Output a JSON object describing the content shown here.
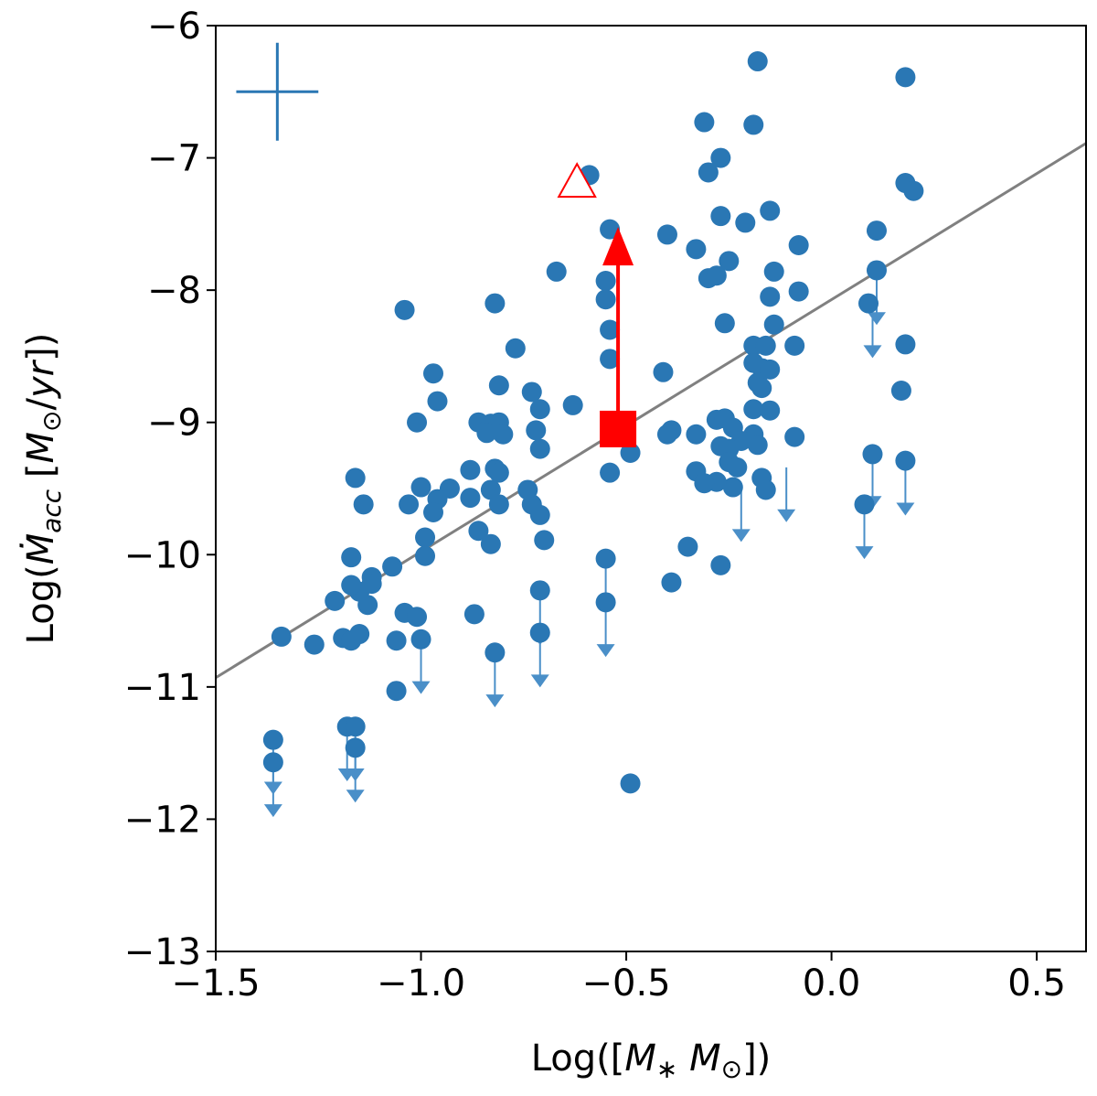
{
  "chart_data": {
    "type": "scatter",
    "title": "",
    "xlabel": "Log([M* M⊙])",
    "ylabel": "Log(Ṁacc [M⊙/yr])",
    "xlim": [
      -1.5,
      0.62
    ],
    "ylim": [
      -13,
      -6
    ],
    "xticks": [
      -1.5,
      -1.0,
      -0.5,
      0.0,
      0.5
    ],
    "xtick_labels": [
      "−1.5",
      "−1.0",
      "−0.5",
      "0.0",
      "0.5"
    ],
    "yticks": [
      -13,
      -12,
      -11,
      -10,
      -9,
      -8,
      -7,
      -6
    ],
    "ytick_labels": [
      "−13",
      "−12",
      "−11",
      "−10",
      "−9",
      "−8",
      "−7",
      "−6"
    ],
    "grid": false,
    "colors": {
      "points": "#2a77b4",
      "upper_limits": "#4a8fc8",
      "fit": "#808080",
      "highlight": "#ff0000"
    },
    "typical_error": {
      "x": -1.35,
      "y": -6.5,
      "xerr": 0.1,
      "yerr": 0.37
    },
    "fit_line": {
      "x": [
        -1.5,
        0.62
      ],
      "y": [
        -10.93,
        -6.89
      ]
    },
    "series": [
      {
        "name": "detections",
        "marker": "circle",
        "points": [
          [
            -0.18,
            -6.27
          ],
          [
            0.18,
            -6.39
          ],
          [
            -0.31,
            -6.73
          ],
          [
            -0.19,
            -6.75
          ],
          [
            -0.3,
            -7.11
          ],
          [
            -0.27,
            -7.0
          ],
          [
            -0.59,
            -7.13
          ],
          [
            0.18,
            -7.19
          ],
          [
            0.2,
            -7.25
          ],
          [
            -0.27,
            -7.44
          ],
          [
            -0.21,
            -7.49
          ],
          [
            -0.15,
            -7.4
          ],
          [
            -0.54,
            -7.54
          ],
          [
            0.11,
            -7.55
          ],
          [
            -0.4,
            -7.58
          ],
          [
            -0.33,
            -7.69
          ],
          [
            -0.08,
            -7.66
          ],
          [
            -0.25,
            -7.78
          ],
          [
            -0.3,
            -7.91
          ],
          [
            -0.28,
            -7.89
          ],
          [
            -0.67,
            -7.86
          ],
          [
            -0.55,
            -7.93
          ],
          [
            -0.14,
            -7.86
          ],
          [
            0.11,
            -7.85
          ],
          [
            -0.15,
            -8.05
          ],
          [
            -0.08,
            -8.01
          ],
          [
            -0.55,
            -8.07
          ],
          [
            -0.82,
            -8.1
          ],
          [
            -1.04,
            -8.15
          ],
          [
            0.09,
            -8.1
          ],
          [
            -0.54,
            -8.3
          ],
          [
            -0.26,
            -8.25
          ],
          [
            -0.14,
            -8.26
          ],
          [
            -0.19,
            -8.42
          ],
          [
            -0.16,
            -8.42
          ],
          [
            -0.09,
            -8.42
          ],
          [
            0.18,
            -8.41
          ],
          [
            -0.77,
            -8.44
          ],
          [
            -0.54,
            -8.52
          ],
          [
            -0.19,
            -8.55
          ],
          [
            -0.17,
            -8.59
          ],
          [
            -0.15,
            -8.6
          ],
          [
            -0.97,
            -8.63
          ],
          [
            -0.41,
            -8.62
          ],
          [
            -0.81,
            -8.72
          ],
          [
            -0.18,
            -8.7
          ],
          [
            -0.17,
            -8.74
          ],
          [
            0.17,
            -8.76
          ],
          [
            -0.73,
            -8.77
          ],
          [
            -0.96,
            -8.84
          ],
          [
            -0.63,
            -8.87
          ],
          [
            -0.19,
            -8.9
          ],
          [
            -0.15,
            -8.91
          ],
          [
            -0.71,
            -8.9
          ],
          [
            -1.01,
            -9.0
          ],
          [
            -0.86,
            -9.0
          ],
          [
            -0.83,
            -9.01
          ],
          [
            -0.81,
            -9.0
          ],
          [
            -0.84,
            -9.08
          ],
          [
            -0.8,
            -9.09
          ],
          [
            -0.72,
            -9.06
          ],
          [
            -0.39,
            -9.06
          ],
          [
            -0.4,
            -9.09
          ],
          [
            -0.33,
            -9.09
          ],
          [
            -0.28,
            -8.98
          ],
          [
            -0.26,
            -8.97
          ],
          [
            -0.24,
            -9.04
          ],
          [
            -0.19,
            -9.09
          ],
          [
            -0.22,
            -9.14
          ],
          [
            -0.18,
            -9.17
          ],
          [
            -0.27,
            -9.18
          ],
          [
            -0.25,
            -9.2
          ],
          [
            -0.49,
            -9.23
          ],
          [
            -0.71,
            -9.2
          ],
          [
            -0.82,
            -9.35
          ],
          [
            -0.81,
            -9.38
          ],
          [
            -0.88,
            -9.36
          ],
          [
            -0.54,
            -9.38
          ],
          [
            -0.33,
            -9.37
          ],
          [
            -0.25,
            -9.3
          ],
          [
            -0.23,
            -9.34
          ],
          [
            -0.17,
            -9.42
          ],
          [
            -0.24,
            -9.49
          ],
          [
            -0.28,
            -9.45
          ],
          [
            -0.31,
            -9.46
          ],
          [
            -0.16,
            -9.51
          ],
          [
            -0.09,
            -9.11
          ],
          [
            0.1,
            -9.24
          ],
          [
            0.18,
            -9.29
          ],
          [
            -1.16,
            -9.42
          ],
          [
            -1.0,
            -9.49
          ],
          [
            -0.93,
            -9.5
          ],
          [
            -0.83,
            -9.51
          ],
          [
            -0.74,
            -9.51
          ],
          [
            -0.73,
            -9.62
          ],
          [
            -0.81,
            -9.62
          ],
          [
            -0.88,
            -9.57
          ],
          [
            -0.96,
            -9.58
          ],
          [
            -1.03,
            -9.62
          ],
          [
            -1.14,
            -9.62
          ],
          [
            -0.71,
            -9.7
          ],
          [
            -0.97,
            -9.68
          ],
          [
            -0.99,
            -9.87
          ],
          [
            -0.86,
            -9.82
          ],
          [
            -0.83,
            -9.92
          ],
          [
            -0.7,
            -9.89
          ],
          [
            -1.17,
            -10.02
          ],
          [
            -0.99,
            -10.01
          ],
          [
            -0.55,
            -10.03
          ],
          [
            -0.35,
            -9.94
          ],
          [
            -0.27,
            -10.08
          ],
          [
            -1.07,
            -10.09
          ],
          [
            -1.12,
            -10.17
          ],
          [
            -1.12,
            -10.22
          ],
          [
            -1.15,
            -10.28
          ],
          [
            -1.17,
            -10.23
          ],
          [
            -1.21,
            -10.35
          ],
          [
            -1.13,
            -10.38
          ],
          [
            -0.71,
            -10.27
          ],
          [
            -0.39,
            -10.21
          ],
          [
            0.08,
            -9.62
          ],
          [
            -1.04,
            -10.44
          ],
          [
            -1.01,
            -10.47
          ],
          [
            -0.87,
            -10.45
          ],
          [
            -0.55,
            -10.36
          ],
          [
            -0.71,
            -10.59
          ],
          [
            -1.34,
            -10.62
          ],
          [
            -1.26,
            -10.68
          ],
          [
            -1.19,
            -10.63
          ],
          [
            -1.17,
            -10.65
          ],
          [
            -1.15,
            -10.6
          ],
          [
            -1.06,
            -10.65
          ],
          [
            -1.0,
            -10.64
          ],
          [
            -0.82,
            -10.74
          ],
          [
            -1.06,
            -11.03
          ],
          [
            -0.49,
            -11.73
          ],
          [
            -1.36,
            -11.4
          ],
          [
            -1.36,
            -11.57
          ],
          [
            -1.18,
            -11.3
          ],
          [
            -1.16,
            -11.3
          ],
          [
            -1.16,
            -11.46
          ]
        ]
      },
      {
        "name": "upper limits",
        "marker": "arrow-down",
        "points": [
          [
            -1.36,
            -11.4
          ],
          [
            -1.36,
            -11.57
          ],
          [
            -1.18,
            -11.3
          ],
          [
            -1.16,
            -11.3
          ],
          [
            -1.16,
            -11.46
          ],
          [
            -1.0,
            -10.64
          ],
          [
            -0.82,
            -10.74
          ],
          [
            -0.71,
            -10.59
          ],
          [
            -0.71,
            -10.27
          ],
          [
            -0.55,
            -10.36
          ],
          [
            -0.55,
            -10.03
          ],
          [
            -0.22,
            -9.49
          ],
          [
            -0.11,
            -9.34
          ],
          [
            0.08,
            -9.62
          ],
          [
            0.1,
            -9.24
          ],
          [
            0.18,
            -9.29
          ],
          [
            0.1,
            -8.1
          ],
          [
            0.11,
            -7.85
          ]
        ],
        "arrow_length": 0.4
      },
      {
        "name": "highlighted source",
        "marker": "square",
        "color": "#ff0000",
        "points": [
          [
            -0.52,
            -9.05
          ]
        ],
        "lower_limit_to": -7.55
      },
      {
        "name": "open triangle",
        "marker": "open-triangle",
        "color": "#ff0000",
        "points": [
          [
            -0.62,
            -7.17
          ]
        ]
      }
    ]
  }
}
